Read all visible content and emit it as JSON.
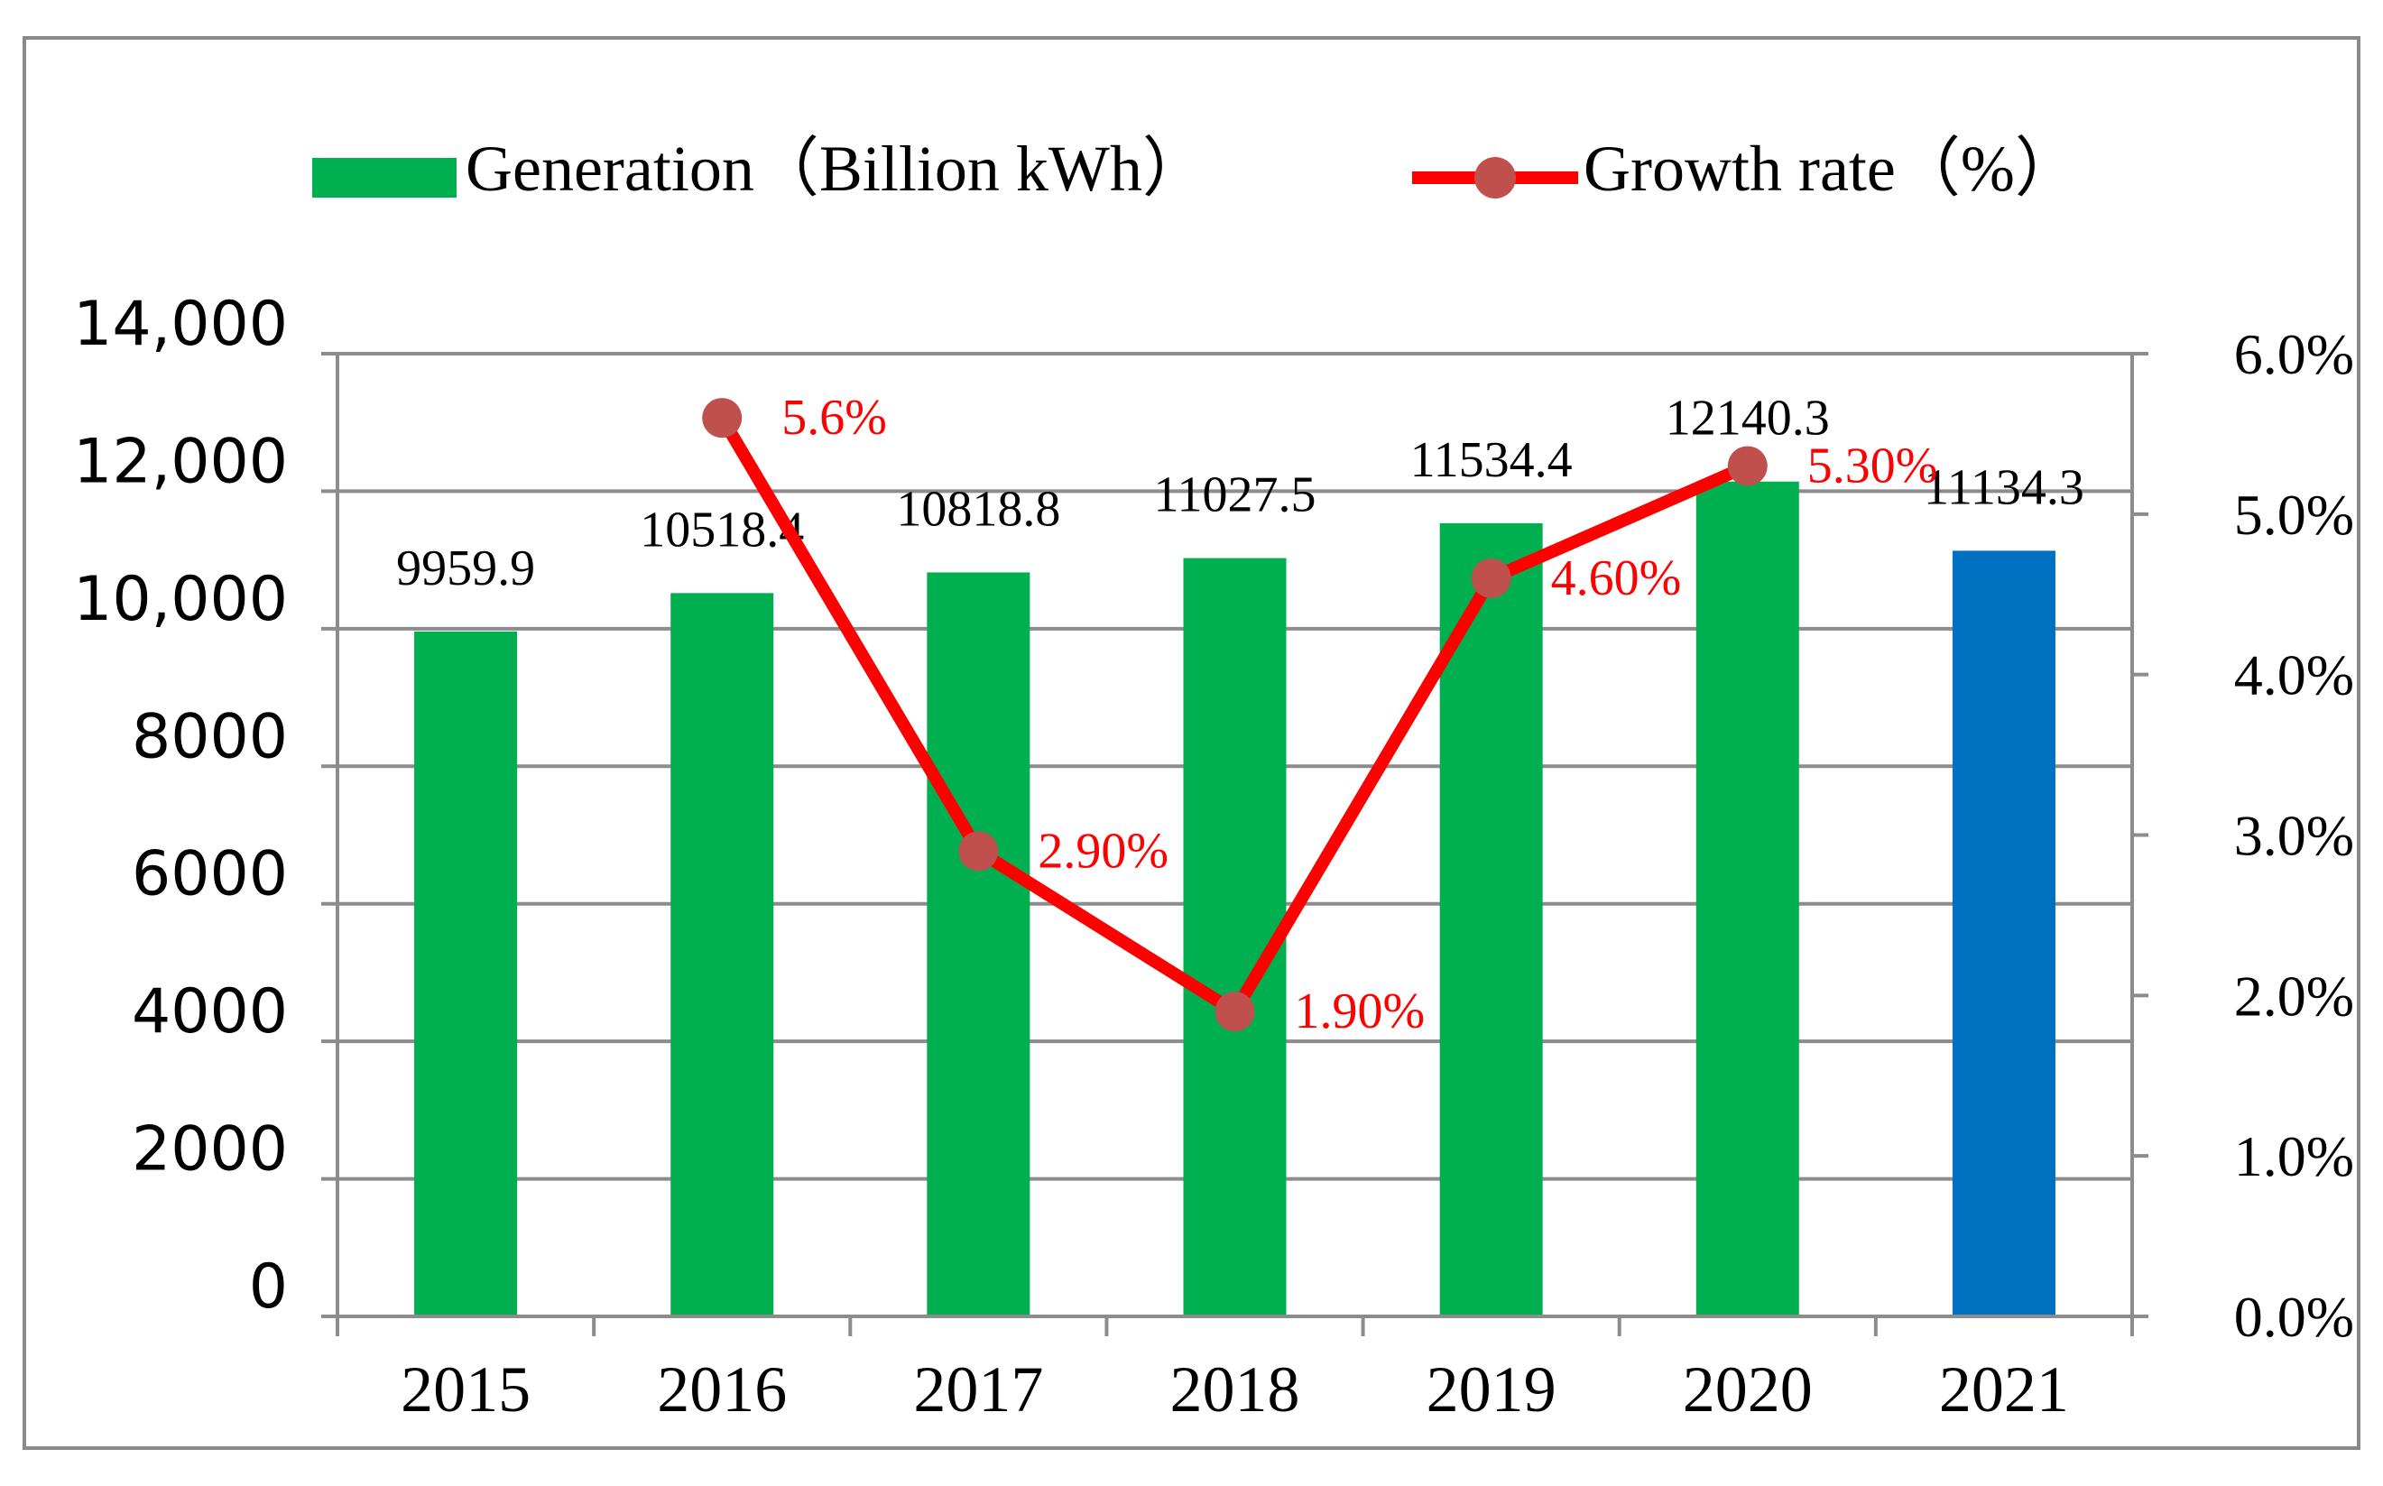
{
  "chart_data": {
    "type": "bar+line",
    "categories": [
      "2015",
      "2016",
      "2017",
      "2018",
      "2019",
      "2020",
      "2021"
    ],
    "series": [
      {
        "name": "Generation（Billion kWh）",
        "kind": "bar",
        "axis": "left",
        "values": [
          9959.9,
          10518.4,
          10818.8,
          11027.5,
          11534.4,
          12140.3,
          11134.3
        ],
        "labels": [
          "9959.9",
          "10518.4",
          "10818.8",
          "11027.5",
          "11534.4",
          "12140.3",
          "11134.3"
        ],
        "colors": [
          "#00b050",
          "#00b050",
          "#00b050",
          "#00b050",
          "#00b050",
          "#00b050",
          "#0070c0"
        ]
      },
      {
        "name": "Growth rate（%）",
        "kind": "line",
        "axis": "right",
        "x": [
          "2016",
          "2017",
          "2018",
          "2019",
          "2020"
        ],
        "values": [
          5.6,
          2.9,
          1.9,
          4.6,
          5.3
        ],
        "labels": [
          "5.6%",
          "2.90%",
          "1.90%",
          "4.60%",
          "5.30%"
        ],
        "line_color": "#ff0000",
        "marker_color": "#c0504d"
      }
    ],
    "left_axis": {
      "ylim": [
        0,
        14000
      ],
      "tick_values": [
        0,
        2000,
        4000,
        6000,
        8000,
        10000,
        12000,
        14000
      ],
      "tick_labels": [
        "0",
        "2000",
        "4000",
        "6000",
        "8000",
        "10,000",
        "12,000",
        "14,000"
      ]
    },
    "right_axis": {
      "ylim": [
        0,
        6
      ],
      "tick_values": [
        0,
        1,
        2,
        3,
        4,
        5,
        6
      ],
      "tick_labels": [
        "0.0%",
        "1.0%",
        "2.0%",
        "3.0%",
        "4.0%",
        "5.0%",
        "6.0%"
      ]
    },
    "legend": {
      "position": "top",
      "bar_label": "Generation（Billion kWh）",
      "line_label": "Growth rate（%）"
    },
    "grid": true,
    "colors": {
      "bar": "#00b050",
      "bar_highlight": "#0070c0",
      "line": "#ff0000",
      "marker": "#c0504d",
      "grid": "#8c8c8c",
      "growth_label": "#ff0000"
    }
  }
}
